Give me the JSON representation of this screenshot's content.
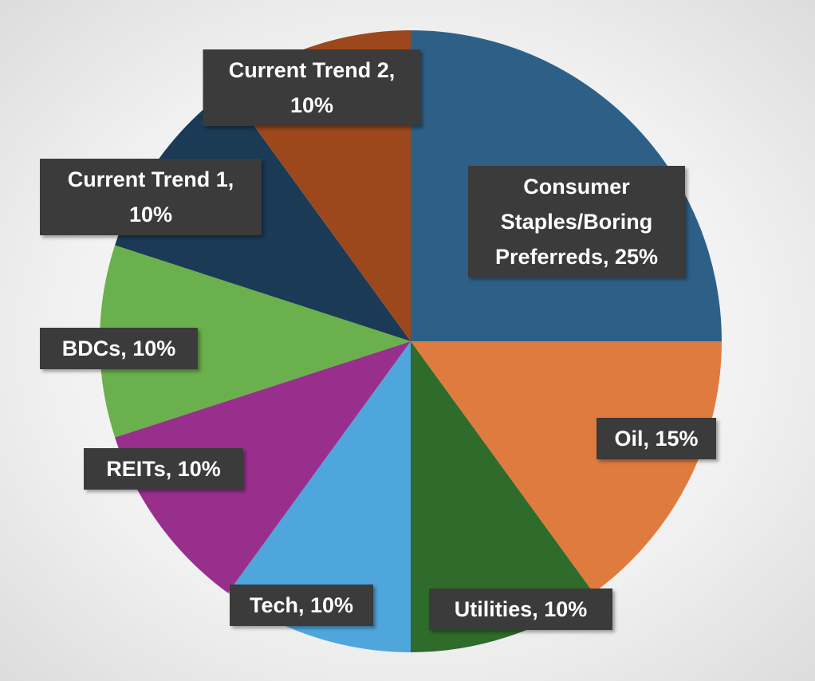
{
  "chart_data": {
    "type": "pie",
    "categories": [
      "Consumer Staples/Boring Preferreds",
      "Oil",
      "Utilities",
      "Tech",
      "REITs",
      "BDCs",
      "Current Trend 1",
      "Current Trend 2"
    ],
    "values": [
      25,
      15,
      10,
      10,
      10,
      10,
      10,
      10
    ],
    "value_labels": [
      "Consumer Staples/Boring Preferreds, 25%",
      "Oil, 15%",
      "Utilities, 10%",
      "Tech, 10%",
      "REITs, 10%",
      "BDCs, 10%",
      "Current Trend 1, 10%",
      "Current Trend 2, 10%"
    ],
    "colors": [
      "#2e6087",
      "#e07b3f",
      "#2f6b2b",
      "#4ea6dc",
      "#992f8c",
      "#6ab04c",
      "#1b3a55",
      "#9c481c"
    ]
  }
}
